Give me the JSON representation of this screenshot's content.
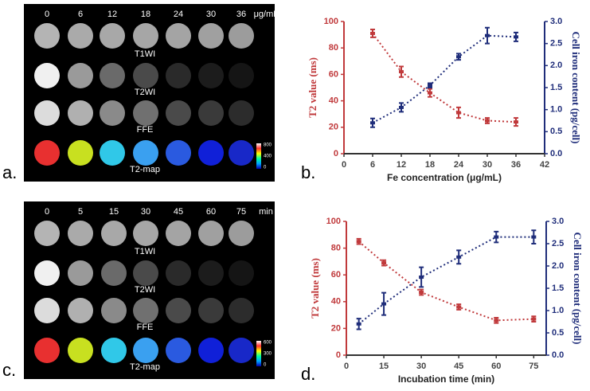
{
  "image_panels": [
    {
      "label": "a.",
      "columns": [
        "0",
        "6",
        "12",
        "18",
        "24",
        "30",
        "36"
      ],
      "unit": "μg/mL",
      "rows": [
        "T1WI",
        "T2WI",
        "FFE",
        "T2-map"
      ],
      "colorbar": [
        "800",
        "400",
        "0"
      ]
    },
    {
      "label": "c.",
      "columns": [
        "0",
        "5",
        "15",
        "30",
        "45",
        "60",
        "75"
      ],
      "unit": "min",
      "rows": [
        "T1WI",
        "T2WI",
        "FFE",
        "T2-map"
      ],
      "colorbar": [
        "600",
        "300",
        "0"
      ]
    }
  ],
  "chart_data": [
    {
      "type": "line",
      "label": "b.",
      "xlabel": "Fe concentration  (μg/mL)",
      "ylabel": "T2 value (ms)",
      "y2label": "Cell iron content (pg/cell)",
      "x": [
        6,
        12,
        18,
        24,
        30,
        36
      ],
      "xlim": [
        0,
        42
      ],
      "xticks": [
        0,
        6,
        12,
        18,
        24,
        30,
        36,
        42
      ],
      "ylim": [
        0,
        100
      ],
      "yticks": [
        0,
        20,
        40,
        60,
        80,
        100
      ],
      "y2lim": [
        0,
        3
      ],
      "y2ticks": [
        {
          "value": 0,
          "label": "0.0"
        },
        {
          "value": 0.5,
          "label": "0.5"
        },
        {
          "value": 1,
          "label": "1.0"
        },
        {
          "value": 1.5,
          "label": "1.5"
        },
        {
          "value": 2,
          "label": "2.0"
        },
        {
          "value": 2.5,
          "label": "2.5"
        },
        {
          "value": 3,
          "label": "3.0"
        }
      ],
      "series": [
        {
          "color": "#c0393b",
          "values": [
            91,
            62,
            46,
            31,
            25,
            24
          ],
          "errors": [
            3,
            4,
            3,
            4,
            2,
            3
          ]
        },
        {
          "color": "#1f2d7a",
          "axis": "y2",
          "values": [
            0.7,
            1.05,
            1.55,
            2.2,
            2.68,
            2.65
          ],
          "errors": [
            0.1,
            0.1,
            0.05,
            0.07,
            0.18,
            0.1
          ]
        }
      ]
    },
    {
      "type": "line",
      "label": "d.",
      "xlabel": "Incubation time (min)",
      "ylabel": "T2 value (ms)",
      "y2label": "Cell iron content (pg/cell)",
      "x": [
        5,
        15,
        30,
        45,
        60,
        75
      ],
      "xlim": [
        0,
        80
      ],
      "xticks": [
        0,
        15,
        30,
        45,
        60,
        75
      ],
      "ylim": [
        0,
        100
      ],
      "yticks": [
        0,
        20,
        40,
        60,
        80,
        100
      ],
      "y2lim": [
        0,
        3
      ],
      "y2ticks": [
        {
          "value": 0,
          "label": "0.0"
        },
        {
          "value": 0.5,
          "label": "0.5"
        },
        {
          "value": 1,
          "label": "1.0"
        },
        {
          "value": 1.5,
          "label": "1.5"
        },
        {
          "value": 2,
          "label": "2.0"
        },
        {
          "value": 2.5,
          "label": "2.5"
        },
        {
          "value": 3,
          "label": "3.0"
        }
      ],
      "series": [
        {
          "color": "#c0393b",
          "values": [
            85,
            69,
            47,
            36,
            26,
            27
          ],
          "errors": [
            2,
            2,
            2,
            2,
            2,
            2
          ]
        },
        {
          "color": "#1f2d7a",
          "axis": "y2",
          "values": [
            0.7,
            1.15,
            1.75,
            2.2,
            2.65,
            2.65
          ],
          "errors": [
            0.12,
            0.25,
            0.22,
            0.15,
            0.12,
            0.15
          ]
        }
      ]
    }
  ]
}
